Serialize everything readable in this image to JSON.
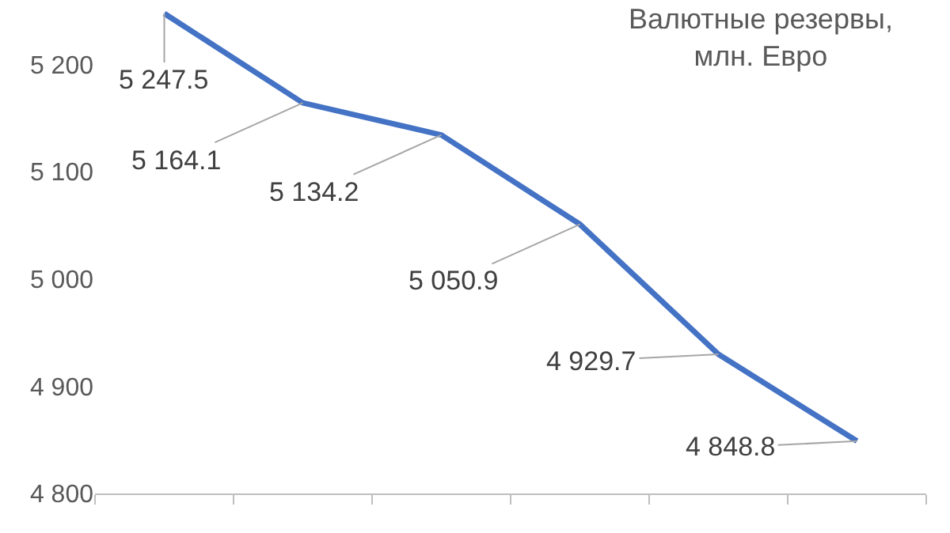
{
  "chart_data": {
    "type": "line",
    "title": "Валютные резервы,\nмлн. Евро",
    "categories": [
      null,
      null,
      null,
      null,
      null,
      null
    ],
    "series": [
      {
        "color": "#4472c4",
        "values": [
          5247.5,
          5164.1,
          5134.2,
          5050.9,
          4929.7,
          4848.8
        ]
      }
    ],
    "ylim": [
      4800,
      5260
    ],
    "yticks": [
      {
        "value": 4800,
        "label": "4 800"
      },
      {
        "value": 4900,
        "label": "4 900"
      },
      {
        "value": 5000,
        "label": "5 000"
      },
      {
        "value": 5100,
        "label": "5 100"
      },
      {
        "value": 5200,
        "label": "5 200"
      }
    ],
    "value_labels": [
      "5 247.5",
      "5 164.1",
      "5 134.2",
      "5 050.9",
      "4 929.7",
      "4 848.8"
    ],
    "grid": false,
    "marker": "none",
    "line_style": "solid"
  }
}
